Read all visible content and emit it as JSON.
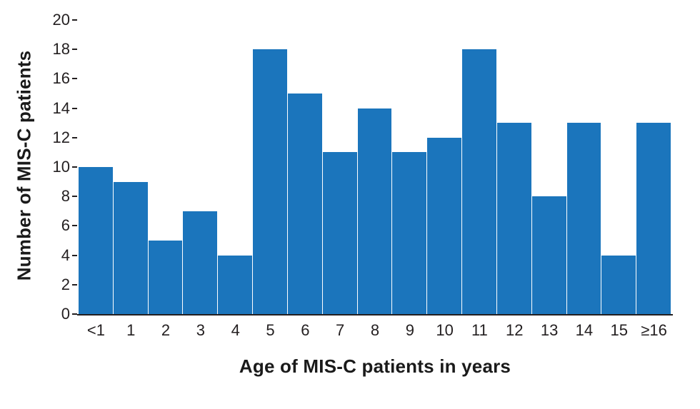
{
  "chart_data": {
    "type": "bar",
    "title": "",
    "xlabel": "Age of MIS-C patients in years",
    "ylabel": "Number of MIS-C patients",
    "categories": [
      "<1",
      "1",
      "2",
      "3",
      "4",
      "5",
      "6",
      "7",
      "8",
      "9",
      "10",
      "11",
      "12",
      "13",
      "14",
      "15",
      "≥16"
    ],
    "values": [
      10,
      9,
      5,
      7,
      4,
      18,
      15,
      11,
      14,
      11,
      12,
      18,
      13,
      8,
      13,
      4,
      13
    ],
    "ylim": [
      0,
      20
    ],
    "yticks": [
      0,
      2,
      4,
      6,
      8,
      10,
      12,
      14,
      16,
      18,
      20
    ],
    "bar_color": "#1b75bc",
    "axis_color": "#231f20",
    "grid": false,
    "legend_position": "none"
  }
}
